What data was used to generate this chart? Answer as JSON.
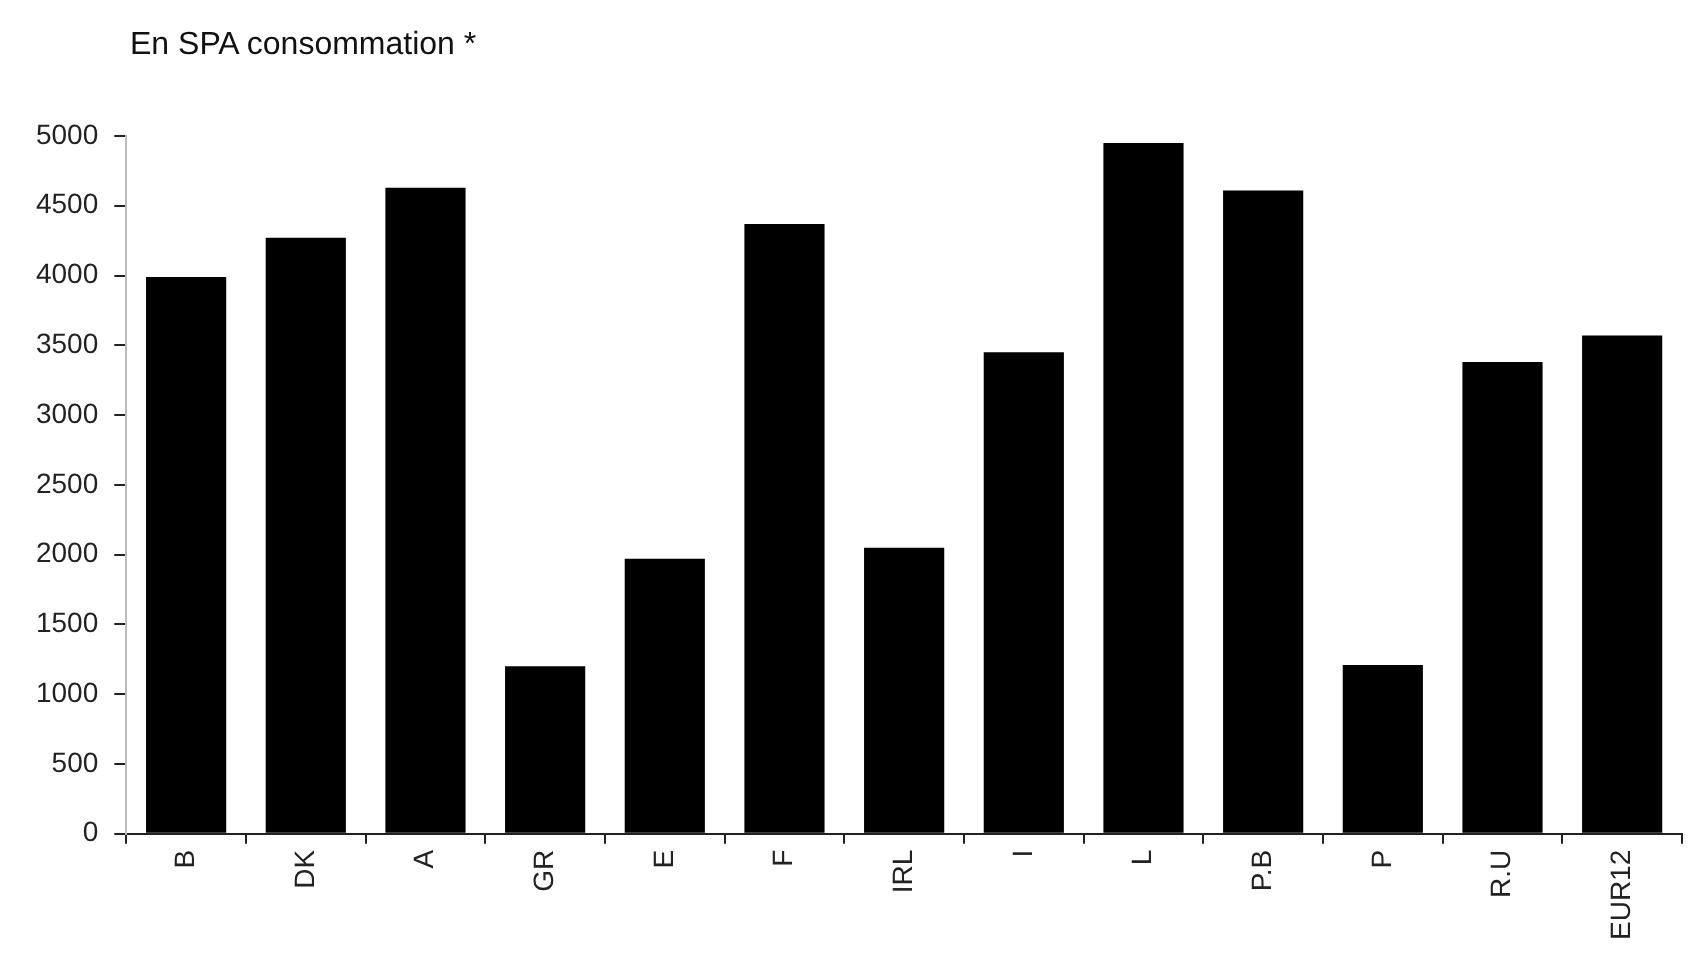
{
  "chart_data": {
    "type": "bar",
    "title": "En SPA consommation *",
    "categories": [
      "B",
      "DK",
      "A",
      "GR",
      "E",
      "F",
      "IRL",
      "I",
      "L",
      "P.B",
      "P",
      "R.U",
      "EUR12"
    ],
    "values": [
      3990,
      4270,
      4630,
      1200,
      1970,
      4370,
      2050,
      3450,
      4950,
      4610,
      1210,
      3380,
      3570
    ],
    "color": "#000000",
    "ylim": [
      0,
      5000
    ],
    "yticks": [
      0,
      500,
      1000,
      1500,
      2000,
      2500,
      3000,
      3500,
      4000,
      4500,
      5000
    ],
    "grid": false,
    "legend": false
  }
}
